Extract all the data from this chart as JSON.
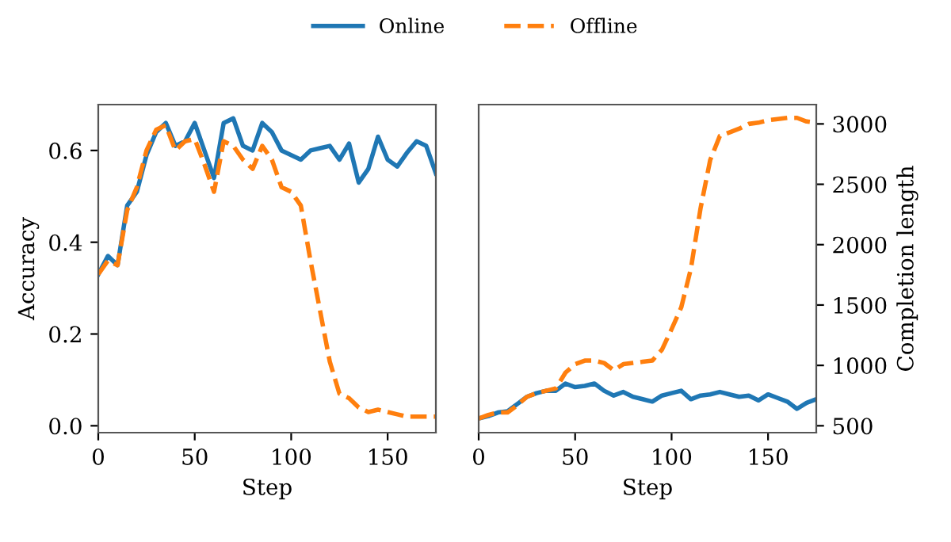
{
  "chart_data": [
    {
      "type": "line",
      "xlabel": "Step",
      "ylabel": "Accuracy",
      "legend": "top",
      "x": [
        0,
        5,
        10,
        15,
        20,
        25,
        30,
        35,
        40,
        45,
        50,
        55,
        60,
        65,
        70,
        75,
        80,
        85,
        90,
        95,
        100,
        105,
        110,
        115,
        120,
        125,
        130,
        135,
        140,
        145,
        150,
        155,
        160,
        165,
        170,
        175
      ],
      "xlim": [
        0,
        175
      ],
      "xticks": [
        0,
        50,
        100,
        150
      ],
      "ylim": [
        -0.015,
        0.7
      ],
      "yticks": [
        {
          "value": 0.0,
          "label": "0.0"
        },
        0.2,
        0.4,
        0.6
      ],
      "series": [
        {
          "name": "Online",
          "color": "#1f77b4",
          "line_style": "solid",
          "values": [
            0.33,
            0.37,
            0.35,
            0.48,
            0.51,
            0.59,
            0.64,
            0.66,
            0.61,
            0.62,
            0.66,
            0.6,
            0.54,
            0.66,
            0.67,
            0.61,
            0.6,
            0.66,
            0.64,
            0.6,
            0.59,
            0.58,
            0.6,
            0.605,
            0.61,
            0.58,
            0.615,
            0.53,
            0.56,
            0.63,
            0.58,
            0.565,
            0.595,
            0.62,
            0.61,
            0.55
          ]
        },
        {
          "name": "Offline",
          "color": "#ff7f0e",
          "line_style": "dashed",
          "values": [
            0.33,
            0.36,
            0.35,
            0.47,
            0.52,
            0.6,
            0.645,
            0.655,
            0.6,
            0.62,
            0.625,
            0.57,
            0.51,
            0.62,
            0.61,
            0.58,
            0.56,
            0.61,
            0.58,
            0.52,
            0.51,
            0.48,
            0.36,
            0.25,
            0.14,
            0.07,
            0.06,
            0.04,
            0.03,
            0.035,
            0.03,
            0.025,
            0.02,
            0.02,
            0.02,
            0.02
          ]
        }
      ]
    },
    {
      "type": "line",
      "xlabel": "Step",
      "y2label": "Completion length",
      "x": [
        0,
        5,
        10,
        15,
        20,
        25,
        30,
        35,
        40,
        45,
        50,
        55,
        60,
        65,
        70,
        75,
        80,
        85,
        90,
        95,
        100,
        105,
        110,
        115,
        120,
        125,
        130,
        135,
        140,
        145,
        150,
        155,
        160,
        165,
        170,
        175
      ],
      "xlim": [
        0,
        175
      ],
      "xticks": [
        0,
        50,
        100,
        150
      ],
      "y2lim": [
        443,
        3160
      ],
      "y2ticks": [
        500,
        1000,
        1500,
        2000,
        2500,
        3000
      ],
      "series": [
        {
          "color": "#1f77b4",
          "line_style": "solid",
          "axis": "y2",
          "values": [
            560,
            580,
            610,
            620,
            680,
            740,
            770,
            790,
            790,
            850,
            820,
            830,
            850,
            790,
            750,
            780,
            740,
            720,
            700,
            750,
            770,
            790,
            720,
            750,
            760,
            780,
            760,
            740,
            750,
            710,
            760,
            730,
            700,
            640,
            690,
            720
          ]
        },
        {
          "color": "#ff7f0e",
          "line_style": "dashed",
          "axis": "y2",
          "values": [
            560,
            590,
            610,
            610,
            670,
            740,
            770,
            790,
            810,
            940,
            1010,
            1040,
            1040,
            1020,
            960,
            1010,
            1020,
            1030,
            1040,
            1130,
            1300,
            1480,
            1800,
            2300,
            2700,
            2900,
            2930,
            2960,
            3000,
            3010,
            3030,
            3040,
            3050,
            3050,
            3020,
            3010
          ]
        }
      ]
    }
  ]
}
